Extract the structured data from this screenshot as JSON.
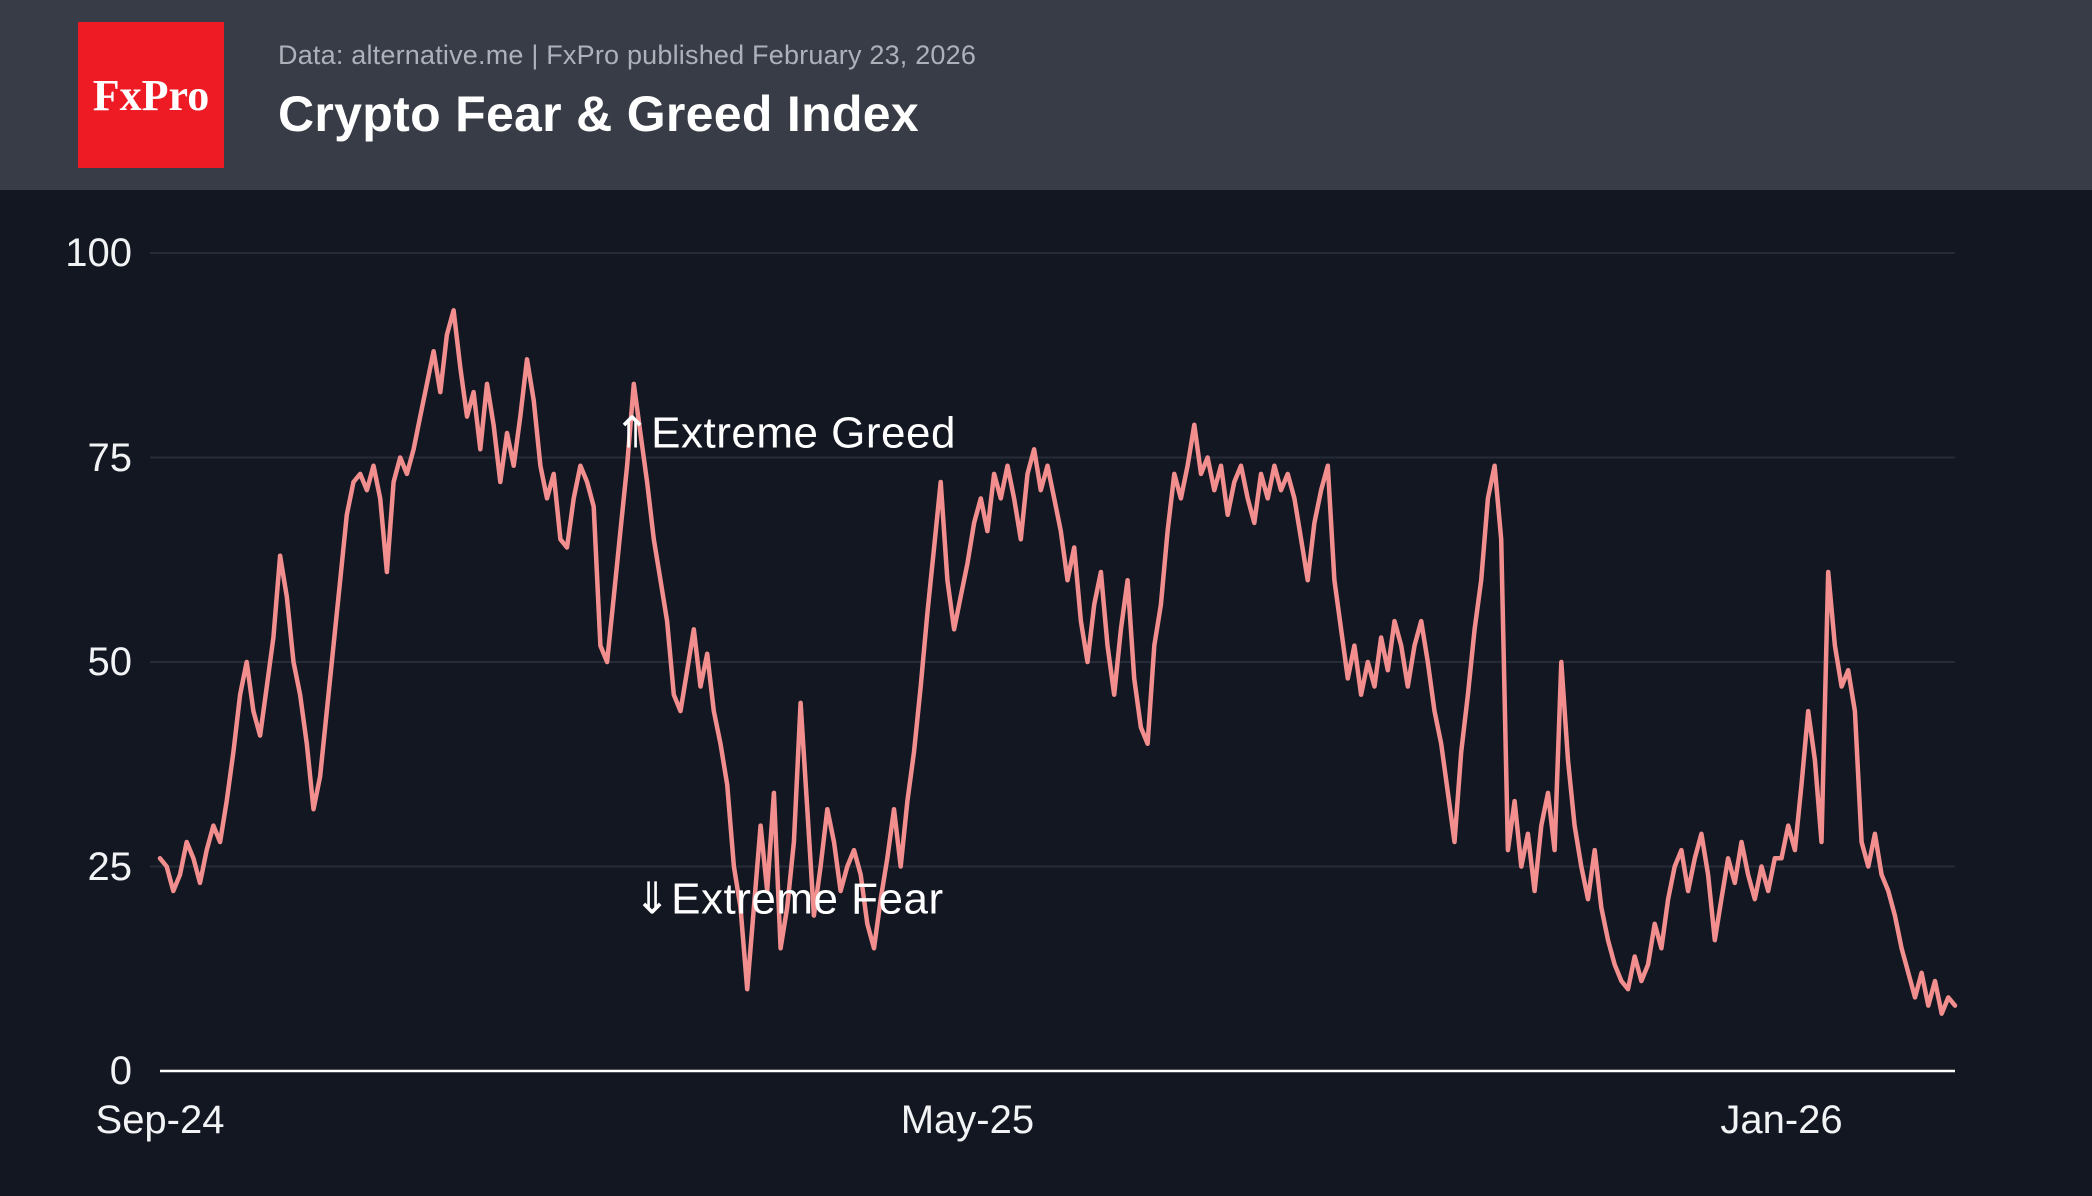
{
  "header": {
    "logo_text": "FxPro",
    "meta": "Data: alternative.me | FxPro published February 23, 2026",
    "title": "Crypto Fear & Greed Index"
  },
  "colors": {
    "background": "#131722",
    "header_background": "#383c46",
    "logo_background": "#ee1b24",
    "line": "#f28f8e",
    "grid": "#262b38",
    "axis": "#ffffff",
    "tick_text": "#f2f3f5",
    "meta_text": "#adb1ba",
    "title_text": "#ffffff"
  },
  "chart_data": {
    "type": "line",
    "title": "Crypto Fear & Greed Index",
    "series_name": "Fear & Greed Index",
    "x_start": "2024-09-01",
    "x_end": "2026-02-22",
    "x_step_days": 2,
    "ylim": [
      0,
      100
    ],
    "y_ticks": [
      0,
      25,
      50,
      75,
      100
    ],
    "grid": "horizontal",
    "legend": "none",
    "x_ticks": [
      {
        "label": "Sep-24",
        "index": 0
      },
      {
        "label": "May-25",
        "index": 121
      },
      {
        "label": "Jan-26",
        "index": 243
      }
    ],
    "values": [
      26,
      25,
      22,
      24,
      28,
      26,
      23,
      27,
      30,
      28,
      33,
      39,
      46,
      50,
      44,
      41,
      47,
      53,
      63,
      58,
      50,
      46,
      40,
      32,
      36,
      44,
      52,
      60,
      68,
      72,
      73,
      71,
      74,
      70,
      61,
      72,
      75,
      73,
      76,
      80,
      84,
      88,
      83,
      90,
      93,
      86,
      80,
      83,
      76,
      84,
      79,
      72,
      78,
      74,
      80,
      87,
      82,
      74,
      70,
      73,
      65,
      64,
      70,
      74,
      72,
      69,
      52,
      50,
      58,
      66,
      74,
      84,
      78,
      72,
      65,
      60,
      55,
      46,
      44,
      49,
      54,
      47,
      51,
      44,
      40,
      35,
      25,
      20,
      10,
      20,
      30,
      22,
      34,
      15,
      20,
      28,
      45,
      32,
      19,
      25,
      32,
      28,
      22,
      25,
      27,
      24,
      18,
      15,
      21,
      26,
      32,
      25,
      33,
      39,
      47,
      56,
      64,
      72,
      60,
      54,
      58,
      62,
      67,
      70,
      66,
      73,
      70,
      74,
      70,
      65,
      73,
      76,
      71,
      74,
      70,
      66,
      60,
      64,
      55,
      50,
      57,
      61,
      52,
      46,
      54,
      60,
      48,
      42,
      40,
      52,
      57,
      66,
      73,
      70,
      74,
      79,
      73,
      75,
      71,
      74,
      68,
      72,
      74,
      70,
      67,
      73,
      70,
      74,
      71,
      73,
      70,
      65,
      60,
      67,
      71,
      74,
      60,
      54,
      48,
      52,
      46,
      50,
      47,
      53,
      49,
      55,
      52,
      47,
      52,
      55,
      50,
      44,
      40,
      34,
      28,
      39,
      46,
      54,
      60,
      70,
      74,
      65,
      27,
      33,
      25,
      29,
      22,
      30,
      34,
      27,
      50,
      38,
      30,
      25,
      21,
      27,
      20,
      16,
      13,
      11,
      10,
      14,
      11,
      13,
      18,
      15,
      21,
      25,
      27,
      22,
      26,
      29,
      24,
      16,
      21,
      26,
      23,
      28,
      24,
      21,
      25,
      22,
      26,
      26,
      30,
      27,
      35,
      44,
      38,
      28,
      61,
      52,
      47,
      49,
      44,
      28,
      25,
      29,
      24,
      22,
      19,
      15,
      12,
      9,
      12,
      8,
      11,
      7,
      9,
      8
    ],
    "annotations": [
      {
        "label": "⇑Extreme Greed",
        "index": 68,
        "value": 78
      },
      {
        "label": "⇓Extreme Fear",
        "index": 71,
        "value": 21
      }
    ]
  }
}
